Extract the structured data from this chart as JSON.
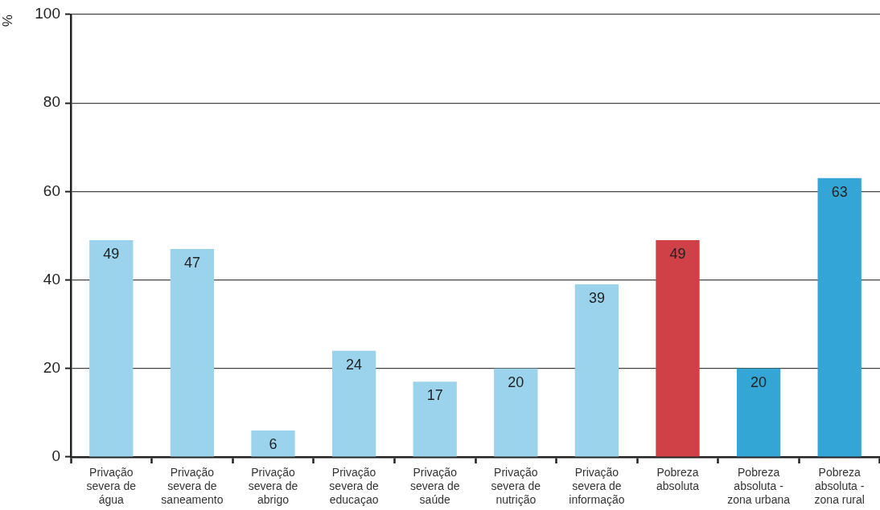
{
  "chart_data": {
    "type": "bar",
    "categories": [
      "Privação severa de água",
      "Privação severa de saneamento",
      "Privação severa de abrigo",
      "Privação severa de educaçao",
      "Privação severa de saúde",
      "Privação severa de nutrição",
      "Privação severa de informação",
      "Pobreza absoluta",
      "Pobreza absoluta - zona urbana",
      "Pobreza absoluta - zona rural"
    ],
    "values": [
      49,
      47,
      6,
      24,
      17,
      20,
      39,
      49,
      20,
      63
    ],
    "colors": [
      "#9bd3ec",
      "#9bd3ec",
      "#9bd3ec",
      "#9bd3ec",
      "#9bd3ec",
      "#9bd3ec",
      "#9bd3ec",
      "#cf4047",
      "#33a6d6",
      "#33a6d6"
    ],
    "ylabel": "%",
    "ylim": [
      0,
      100
    ],
    "yticks": [
      0,
      20,
      40,
      60,
      80,
      100
    ],
    "grid": "y",
    "data_labels": true
  }
}
